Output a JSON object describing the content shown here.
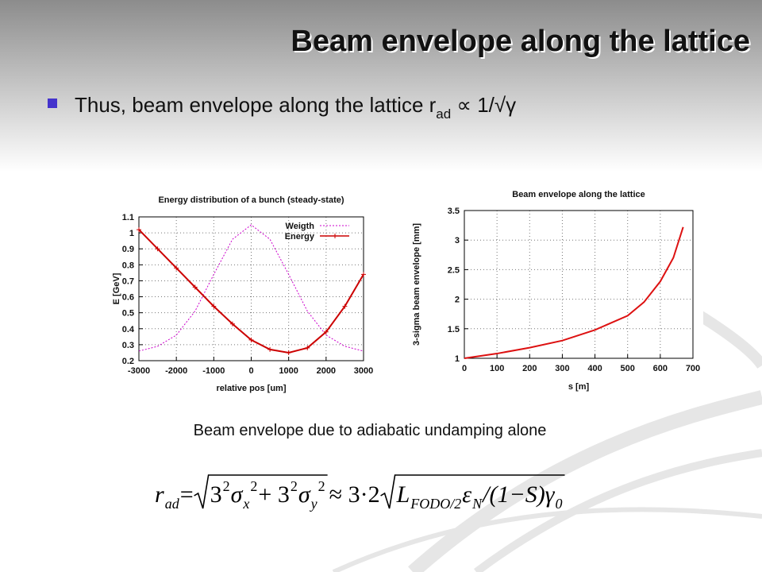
{
  "title": "Beam envelope along the lattice",
  "bullet": {
    "text": "Thus, beam envelope along the lattice r",
    "subscript": "ad",
    "tail": " ∝ 1/√γ"
  },
  "caption": "Beam envelope due to adiabatic undamping alone",
  "formula": {
    "lhs": [
      {
        "text": "r",
        "style": "italic"
      },
      {
        "text": "ad",
        "style": "sub"
      },
      {
        "text": " = ",
        "style": "normal"
      }
    ],
    "root1": [
      {
        "text": "3",
        "style": "normal"
      },
      {
        "text": "2",
        "style": "sup"
      },
      {
        "text": "σ",
        "style": "italic"
      },
      {
        "text": "x",
        "style": "sub"
      },
      {
        "text": "2",
        "style": "sup"
      },
      {
        "text": " + 3",
        "style": "normal"
      },
      {
        "text": "2",
        "style": "sup"
      },
      {
        "text": "σ",
        "style": "italic"
      },
      {
        "text": "y",
        "style": "sub"
      },
      {
        "text": "2",
        "style": "sup"
      }
    ],
    "mid": [
      {
        "text": " ≈ 3·2",
        "style": "normal"
      }
    ],
    "root2": [
      {
        "text": "L",
        "style": "italic"
      },
      {
        "text": "FODO/2",
        "style": "sub"
      },
      {
        "text": "ε",
        "style": "italic"
      },
      {
        "text": "N",
        "style": "sub"
      },
      {
        "text": " /(1−S)γ",
        "style": "italic"
      },
      {
        "text": "0",
        "style": "sub"
      }
    ]
  },
  "chart_data": [
    {
      "type": "line",
      "title": "Energy distribution of a bunch (steady-state)",
      "x_label": "relative pos [um]",
      "y_label": "E [GeV]",
      "x": [
        -3000,
        -2500,
        -2000,
        -1500,
        -1000,
        -500,
        0,
        500,
        1000,
        1500,
        2000,
        2500,
        3000
      ],
      "series": [
        {
          "name": "Weigth",
          "color": "#cc00cc",
          "dash": true,
          "values": [
            0.26,
            0.29,
            0.36,
            0.51,
            0.74,
            0.96,
            1.05,
            0.96,
            0.74,
            0.51,
            0.36,
            0.29,
            0.26
          ]
        },
        {
          "name": "Energy",
          "color": "#cc0000",
          "dash": false,
          "markers": true,
          "values": [
            1.02,
            0.9,
            0.78,
            0.66,
            0.54,
            0.43,
            0.33,
            0.27,
            0.25,
            0.28,
            0.38,
            0.54,
            0.74
          ]
        }
      ],
      "xlim": [
        -3000,
        3000
      ],
      "xticks": [
        -3000,
        -2000,
        -1000,
        0,
        1000,
        2000,
        3000
      ],
      "ylim": [
        0.2,
        1.1
      ],
      "yticks": [
        0.2,
        0.3,
        0.4,
        0.5,
        0.6,
        0.7,
        0.8,
        0.9,
        1,
        1.1
      ],
      "grid": true,
      "legend": "top-right"
    },
    {
      "type": "line",
      "title": "Beam envelope along the lattice",
      "x_label": "s [m]",
      "y_label": "3-sigma beam envelope [mm]",
      "x": [
        0,
        100,
        200,
        300,
        400,
        500,
        550,
        600,
        640,
        670
      ],
      "series": [
        {
          "color": "#dd1111",
          "dash": false,
          "values": [
            1.0,
            1.08,
            1.18,
            1.3,
            1.48,
            1.72,
            1.95,
            2.3,
            2.7,
            3.22
          ]
        }
      ],
      "xlim": [
        0,
        700
      ],
      "xticks": [
        0,
        100,
        200,
        300,
        400,
        500,
        600,
        700
      ],
      "ylim": [
        1,
        3.5
      ],
      "yticks": [
        1,
        1.5,
        2,
        2.5,
        3,
        3.5
      ],
      "grid": true
    }
  ]
}
